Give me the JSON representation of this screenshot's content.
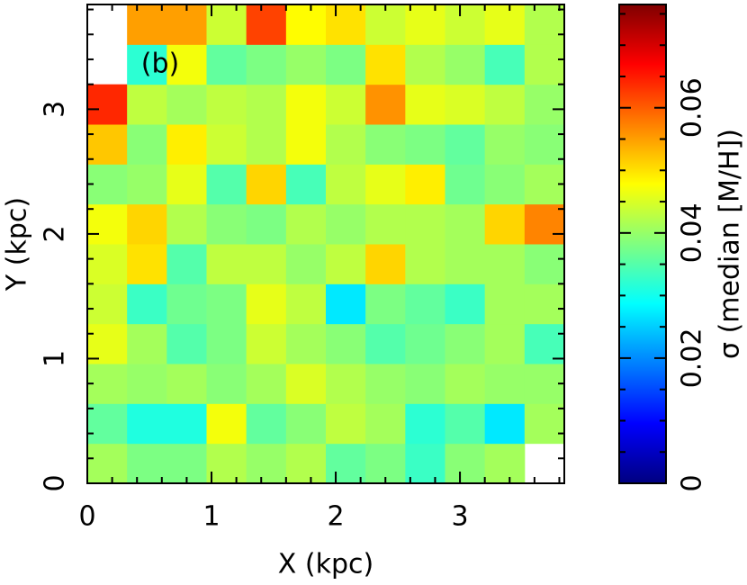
{
  "chart_data": {
    "type": "heatmap",
    "xlabel": "X (kpc)",
    "ylabel": "Y (kpc)",
    "annotation": "(b)",
    "xbins": [
      0,
      0.32,
      0.64,
      0.96,
      1.28,
      1.6,
      1.92,
      2.24,
      2.56,
      2.88,
      3.2,
      3.52,
      3.84
    ],
    "ybins": [
      0,
      0.32,
      0.64,
      0.96,
      1.28,
      1.6,
      1.92,
      2.24,
      2.56,
      2.88,
      3.2,
      3.52,
      3.84
    ],
    "xlim": [
      0,
      3.84
    ],
    "ylim": [
      0,
      3.84
    ],
    "xticks": [
      0,
      1,
      2,
      3
    ],
    "yticks": [
      0,
      1,
      2,
      3
    ],
    "xminorticks": [
      0.2,
      0.4,
      0.6,
      0.8,
      1.2,
      1.4,
      1.6,
      1.8,
      2.2,
      2.4,
      2.6,
      2.8,
      3.2,
      3.4,
      3.6,
      3.8
    ],
    "yminorticks": [
      0.2,
      0.4,
      0.6,
      0.8,
      1.2,
      1.4,
      1.6,
      1.8,
      2.2,
      2.4,
      2.6,
      2.8,
      3.2,
      3.4,
      3.6,
      3.8
    ],
    "values": [
      [
        0.041,
        0.038,
        0.038,
        0.042,
        0.04,
        0.042,
        0.036,
        0.038,
        0.033,
        0.039,
        0.041,
        null
      ],
      [
        0.036,
        0.031,
        0.031,
        0.047,
        0.036,
        0.039,
        0.043,
        0.041,
        0.032,
        0.035,
        0.027,
        0.041
      ],
      [
        0.041,
        0.04,
        0.041,
        0.039,
        0.041,
        0.045,
        0.042,
        0.04,
        0.039,
        0.041,
        0.04,
        0.04
      ],
      [
        0.046,
        0.041,
        0.035,
        0.038,
        0.044,
        0.041,
        0.039,
        0.035,
        0.037,
        0.039,
        0.041,
        0.034
      ],
      [
        0.044,
        0.033,
        0.037,
        0.038,
        0.046,
        0.043,
        0.027,
        0.038,
        0.036,
        0.033,
        0.041,
        0.041
      ],
      [
        0.045,
        0.05,
        0.035,
        0.043,
        0.043,
        0.04,
        0.043,
        0.051,
        0.042,
        0.041,
        0.041,
        0.039
      ],
      [
        0.047,
        0.051,
        0.042,
        0.039,
        0.038,
        0.042,
        0.04,
        0.042,
        0.042,
        0.041,
        0.051,
        0.057
      ],
      [
        0.039,
        0.04,
        0.046,
        0.035,
        0.051,
        0.034,
        0.043,
        0.046,
        0.049,
        0.037,
        0.039,
        0.041
      ],
      [
        0.052,
        0.039,
        0.049,
        0.044,
        0.042,
        0.047,
        0.042,
        0.039,
        0.038,
        0.036,
        0.04,
        0.039
      ],
      [
        0.064,
        0.043,
        0.041,
        0.043,
        0.042,
        0.047,
        0.044,
        0.056,
        0.046,
        0.045,
        0.043,
        0.04
      ],
      [
        null,
        0.032,
        0.047,
        0.036,
        0.038,
        0.04,
        0.038,
        0.05,
        0.042,
        0.04,
        0.034,
        0.042
      ],
      [
        null,
        0.055,
        0.055,
        0.044,
        0.062,
        0.048,
        0.05,
        0.044,
        0.046,
        0.044,
        0.046,
        0.042
      ]
    ],
    "colorbar": {
      "label": "σ (median [M/H])",
      "colormap": "jet",
      "lim": [
        0,
        0.0765
      ],
      "ticks": [
        0,
        0.02,
        0.04,
        0.06
      ],
      "minorticks": [
        0.005,
        0.01,
        0.015,
        0.025,
        0.03,
        0.035,
        0.045,
        0.05,
        0.055,
        0.065,
        0.07,
        0.075
      ]
    }
  }
}
